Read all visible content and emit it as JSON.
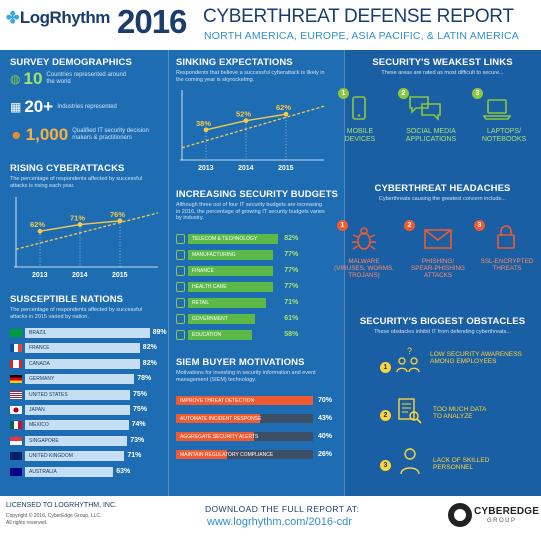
{
  "header": {
    "logo": "LogRhythm",
    "year": "2016",
    "title": "CYBERTHREAT DEFENSE REPORT",
    "subtitle": "NORTH AMERICA, EUROPE, ASIA PACIFIC, & LATIN AMERICA"
  },
  "survey": {
    "title": "SURVEY DEMOGRAPHICS",
    "items": [
      {
        "big": "10",
        "text": "Countries represented around the world",
        "icon": "globe-icon"
      },
      {
        "big": "20+",
        "text": "Industries represented",
        "icon": "building-icon"
      },
      {
        "big": "1,000",
        "text": "Qualified IT security decision makers & practitioners",
        "icon": "people-icon"
      }
    ]
  },
  "sinking": {
    "title": "SINKING EXPECTATIONS",
    "desc": "Respondents that believe a successful cyberattack is likely in the coming year is skyrocketing.",
    "chart_data": {
      "type": "line",
      "categories": [
        "2013",
        "2014",
        "2015"
      ],
      "values": [
        38,
        52,
        62
      ],
      "labels": [
        "38%",
        "52%",
        "62%"
      ]
    }
  },
  "rising": {
    "title": "RISING CYBERATTACKS",
    "desc": "The percentage of respondents affected by successful attacks is rising each year.",
    "chart_data": {
      "type": "line",
      "categories": [
        "2013",
        "2014",
        "2015"
      ],
      "values": [
        62,
        71,
        76
      ],
      "labels": [
        "62%",
        "71%",
        "76%"
      ]
    }
  },
  "budgets": {
    "title": "INCREASING SECURITY BUDGETS",
    "desc": "Although three out of four IT security budgets are increasing in 2016, the percentage of growing IT security budgets varies by industry.",
    "chart_data": {
      "type": "bar",
      "categories": [
        "TELECOM & TECHNOLOGY",
        "MANUFACTURING",
        "FINANCE",
        "HEALTH CARE",
        "RETAIL",
        "GOVERNMENT",
        "EDUCATION"
      ],
      "values": [
        82,
        77,
        77,
        77,
        71,
        61,
        58
      ],
      "labels": [
        "82%",
        "77%",
        "77%",
        "77%",
        "71%",
        "61%",
        "58%"
      ]
    }
  },
  "nations": {
    "title": "SUSCEPTIBLE NATIONS",
    "desc": "The percentage of respondents affected by successful attacks in 2015 varied by nation.",
    "chart_data": {
      "type": "bar",
      "categories": [
        "BRAZIL",
        "FRANCE",
        "CANADA",
        "GERMANY",
        "UNITED STATES",
        "JAPAN",
        "MEXICO",
        "SINGAPORE",
        "UNITED KINGDOM",
        "AUSTRALIA"
      ],
      "values": [
        89,
        82,
        82,
        78,
        75,
        75,
        74,
        73,
        71,
        63
      ],
      "labels": [
        "89%",
        "82%",
        "82%",
        "78%",
        "75%",
        "75%",
        "74%",
        "73%",
        "71%",
        "63%"
      ]
    }
  },
  "siem": {
    "title": "SIEM BUYER MOTIVATIONS",
    "desc": "Motivations for investing in security information and event management (SIEM) technology.",
    "chart_data": {
      "type": "bar",
      "categories": [
        "IMPROVE THREAT DETECTION",
        "AUTOMATE INCIDENT RESPONSE",
        "AGGREGATE SECURITY ALERTS",
        "MAINTAIN REGULATORY COMPLIANCE"
      ],
      "values": [
        70,
        43,
        40,
        26
      ],
      "labels": [
        "70%",
        "43%",
        "40%",
        "26%"
      ]
    }
  },
  "weakest": {
    "title": "SECURITY'S WEAKEST LINKS",
    "desc": "These areas are rated as most difficult to secure...",
    "items": [
      {
        "num": "1",
        "label1": "MOBILE",
        "label2": "DEVICES",
        "icon": "mobile-icon"
      },
      {
        "num": "2",
        "label1": "SOCIAL MEDIA",
        "label2": "APPLICATIONS",
        "icon": "chat-icon"
      },
      {
        "num": "3",
        "label1": "LAPTOPS/",
        "label2": "NOTEBOOKS",
        "icon": "laptop-icon"
      }
    ]
  },
  "headaches": {
    "title": "CYBERTHREAT HEADACHES",
    "desc": "Cyberthreats causing the greatest concern include...",
    "items": [
      {
        "num": "1",
        "label1": "MALWARE",
        "label2": "(VIRUSES, WORMS,",
        "label3": "TROJANS)",
        "icon": "bug-icon"
      },
      {
        "num": "2",
        "label1": "PHISHING/",
        "label2": "SPEAR-PHISHING",
        "label3": "ATTACKS",
        "icon": "envelope-icon"
      },
      {
        "num": "3",
        "label1": "SSL-ENCRYPTED",
        "label2": "THREATS",
        "label3": "",
        "icon": "lock-icon"
      }
    ]
  },
  "obstacles": {
    "title": "SECURITY'S BIGGEST OBSTACLES",
    "desc": "These obstacles inhibit IT from defending cyberthreats...",
    "items": [
      {
        "num": "1",
        "label1": "LOW SECURITY AWARENESS",
        "label2": "AMONG EMPLOYEES",
        "icon": "people-question-icon"
      },
      {
        "num": "2",
        "label1": "TOO MUCH DATA",
        "label2": "TO ANALYZE",
        "icon": "document-search-icon"
      },
      {
        "num": "3",
        "label1": "LACK OF SKILLED",
        "label2": "PERSONNEL",
        "icon": "person-icon"
      }
    ]
  },
  "footer": {
    "licensed": "LICENSED TO LOGRHYTHM, INC.",
    "copyright": "Copyright © 2016, CyberEdge Group, LLC.",
    "rights": "All rights reserved.",
    "download": "DOWNLOAD THE FULL REPORT AT:",
    "url": "www.logrhythm.com/2016-cdr",
    "brand1": "CYBEREDGE",
    "brand2": "GROUP"
  },
  "colors": {
    "panel": "#1e6db3",
    "green": "#8dc63f",
    "orange": "#ef5a31",
    "yellow": "#ffd33a",
    "navy": "#1b3d6e"
  }
}
